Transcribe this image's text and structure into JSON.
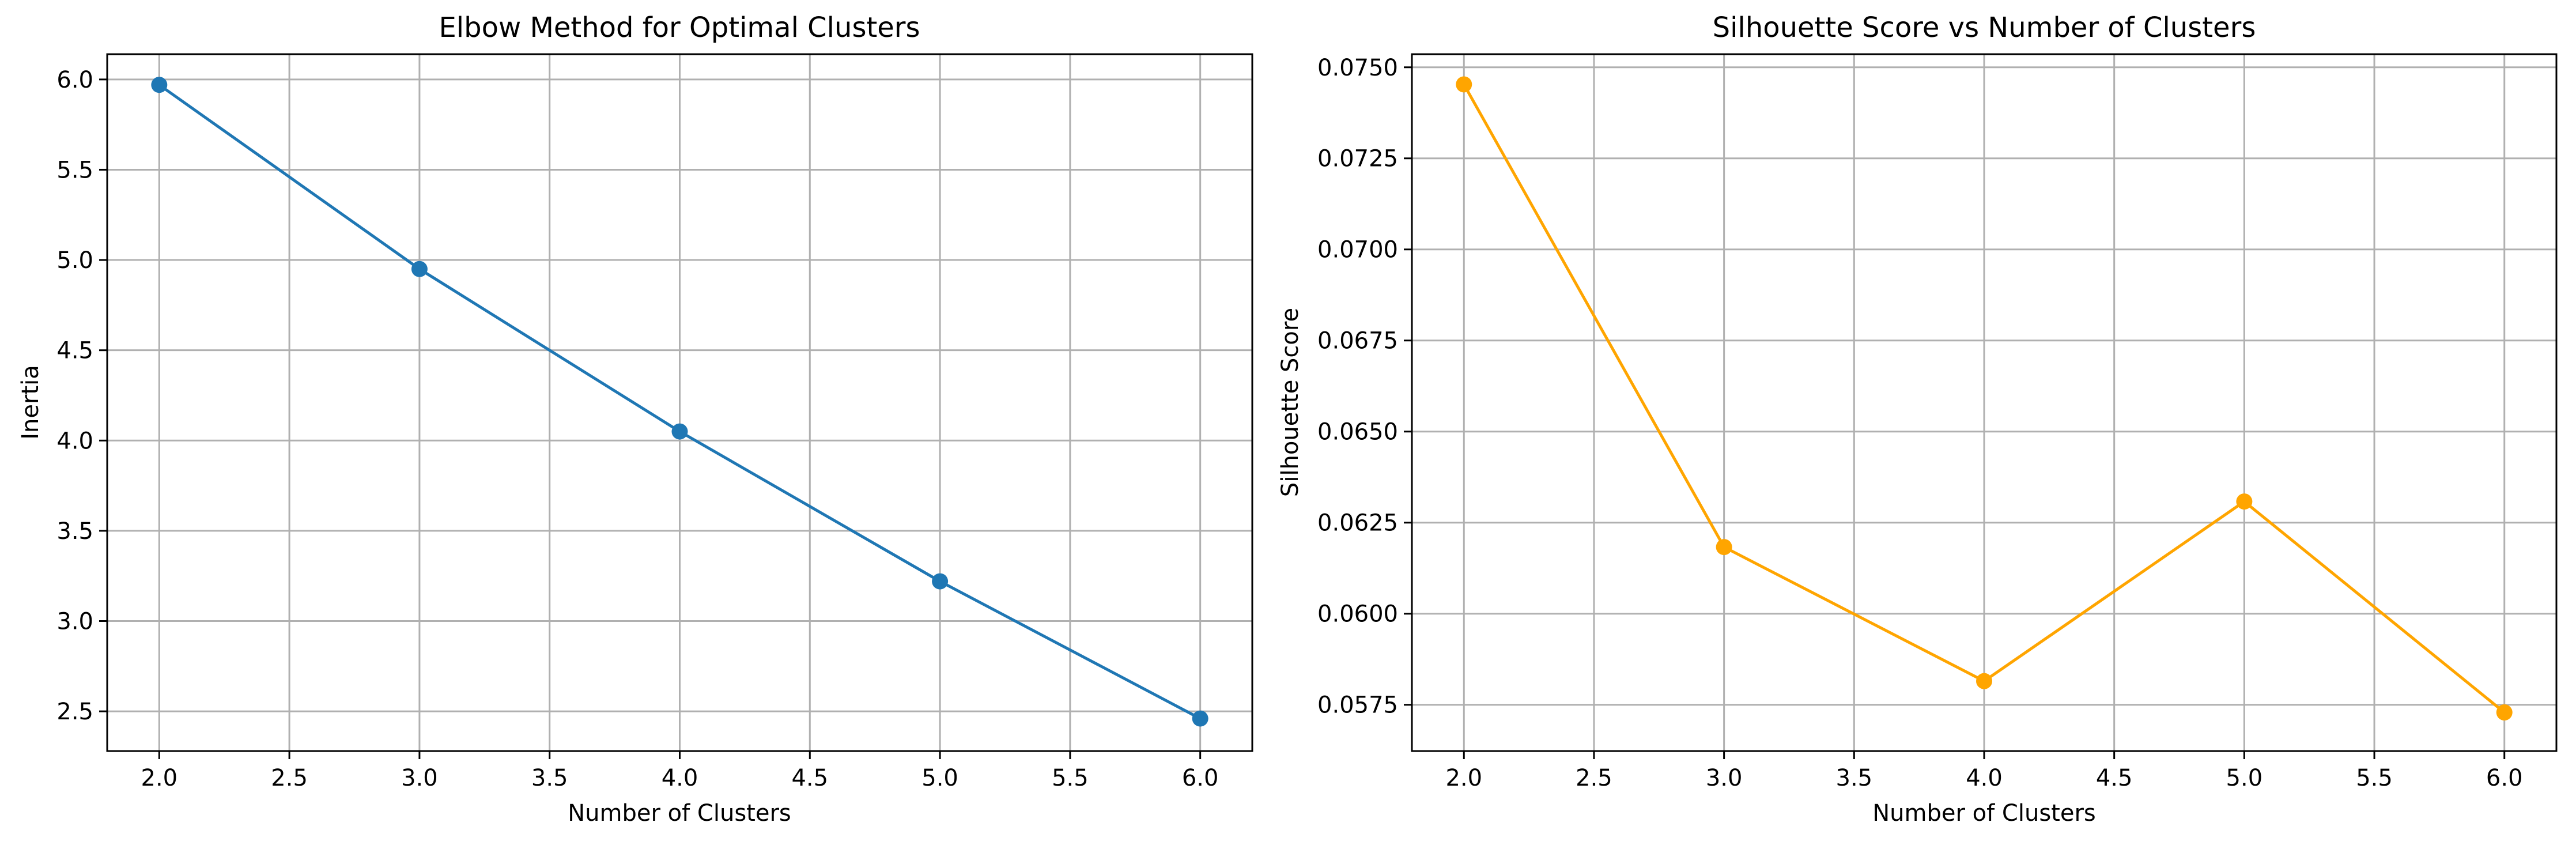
{
  "chart_data": [
    {
      "type": "line",
      "title": "Elbow Method for Optimal Clusters",
      "xlabel": "Number of Clusters",
      "ylabel": "Inertia",
      "grid": true,
      "xlim": [
        1.8,
        6.2
      ],
      "ylim": [
        2.28,
        6.14
      ],
      "xticks": [
        2.0,
        2.5,
        3.0,
        3.5,
        4.0,
        4.5,
        5.0,
        5.5,
        6.0
      ],
      "xtick_labels": [
        "2.0",
        "2.5",
        "3.0",
        "3.5",
        "4.0",
        "4.5",
        "5.0",
        "5.5",
        "6.0"
      ],
      "yticks": [
        2.5,
        3.0,
        3.5,
        4.0,
        4.5,
        5.0,
        5.5,
        6.0
      ],
      "ytick_labels": [
        "2.5",
        "3.0",
        "3.5",
        "4.0",
        "4.5",
        "5.0",
        "5.5",
        "6.0"
      ],
      "x": [
        2,
        3,
        4,
        5,
        6
      ],
      "series": [
        {
          "values": [
            5.97,
            4.95,
            4.05,
            3.22,
            2.46
          ],
          "color": "#1f77b4",
          "marker": "circle"
        }
      ]
    },
    {
      "type": "line",
      "title": "Silhouette Score vs Number of Clusters",
      "xlabel": "Number of Clusters",
      "ylabel": "Silhouette Score",
      "grid": true,
      "xlim": [
        1.8,
        6.2
      ],
      "ylim": [
        0.05623,
        0.07536
      ],
      "xticks": [
        2.0,
        2.5,
        3.0,
        3.5,
        4.0,
        4.5,
        5.0,
        5.5,
        6.0
      ],
      "xtick_labels": [
        "2.0",
        "2.5",
        "3.0",
        "3.5",
        "4.0",
        "4.5",
        "5.0",
        "5.5",
        "6.0"
      ],
      "yticks": [
        0.0575,
        0.06,
        0.0625,
        0.065,
        0.0675,
        0.07,
        0.0725,
        0.075
      ],
      "ytick_labels": [
        "0.0575",
        "0.0600",
        "0.0625",
        "0.0650",
        "0.0675",
        "0.0700",
        "0.0725",
        "0.0750"
      ],
      "x": [
        2,
        3,
        4,
        5,
        6
      ],
      "series": [
        {
          "values": [
            0.07453,
            0.06183,
            0.05815,
            0.06308,
            0.05729
          ],
          "color": "#ffa500",
          "marker": "circle"
        }
      ]
    }
  ]
}
